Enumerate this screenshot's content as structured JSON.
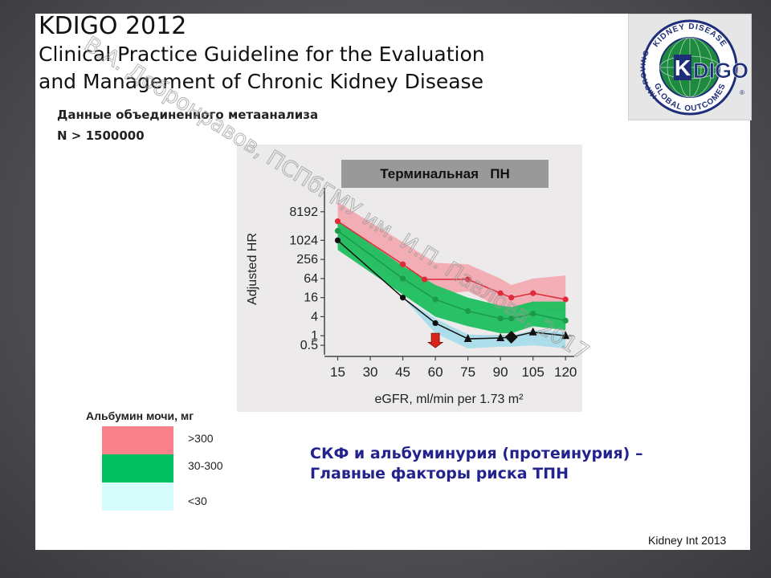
{
  "title": {
    "line1": "KDIGO 2012",
    "line2": "Clinical Practice Guideline for the Evaluation",
    "line3": "and Management of Chronic Kidney Disease"
  },
  "subtitle": {
    "line1": "Данные объединенного метаанализа",
    "line2": "N > 1500000"
  },
  "logo": {
    "top_text": "KIDNEY DISEASE",
    "left_text": "IMPROVING",
    "bottom_text": "GLOBAL OUTCOMES",
    "wordmark_k": "K",
    "wordmark_rest": "DIGO",
    "reg": "®"
  },
  "chart_data": {
    "type": "line",
    "title": "Терминальная   ПН",
    "xlabel": "eGFR, ml/min per 1.73 m²",
    "ylabel": "Adjusted HR",
    "x": [
      15,
      30,
      45,
      60,
      75,
      90,
      105,
      120
    ],
    "x_tick_labels": [
      "15",
      "30",
      "45",
      "60",
      "75",
      "90",
      "105",
      "120"
    ],
    "y_scale": "log2",
    "y_ticks": [
      0.5,
      1,
      4,
      16,
      64,
      256,
      1024,
      8192
    ],
    "y_tick_labels": [
      "0.5",
      "1",
      "4",
      "16",
      "64",
      "256",
      "1024",
      "8192"
    ],
    "y_domain": [
      0.25,
      32768
    ],
    "x_domain": [
      10,
      124
    ],
    "series": [
      {
        "name": ">300",
        "color": "#e02a3a",
        "band_color": "#f4a6ae",
        "points": [
          [
            15,
            4096
          ],
          [
            45,
            180
          ],
          [
            55,
            60
          ],
          [
            75,
            60
          ],
          [
            90,
            22
          ],
          [
            95,
            16
          ],
          [
            105,
            22
          ],
          [
            120,
            14
          ]
        ],
        "band_upper": [
          [
            15,
            16384
          ],
          [
            45,
            900
          ],
          [
            60,
            200
          ],
          [
            75,
            180
          ],
          [
            90,
            64
          ],
          [
            95,
            40
          ],
          [
            105,
            64
          ],
          [
            120,
            80
          ]
        ],
        "band_lower": [
          [
            15,
            1024
          ],
          [
            45,
            40
          ],
          [
            60,
            20
          ],
          [
            75,
            25
          ],
          [
            90,
            8
          ],
          [
            95,
            6
          ],
          [
            105,
            8
          ],
          [
            120,
            5
          ]
        ]
      },
      {
        "name": "30-300",
        "color": "#1a9a4a",
        "band_color": "#1fbf5f",
        "points": [
          [
            15,
            2048
          ],
          [
            45,
            64
          ],
          [
            60,
            14
          ],
          [
            75,
            6
          ],
          [
            90,
            3.5
          ],
          [
            95,
            3.5
          ],
          [
            105,
            5
          ],
          [
            120,
            3
          ]
        ],
        "band_upper": [
          [
            15,
            4096
          ],
          [
            45,
            160
          ],
          [
            60,
            40
          ],
          [
            75,
            16
          ],
          [
            90,
            9
          ],
          [
            95,
            8
          ],
          [
            105,
            12
          ],
          [
            120,
            12
          ]
        ],
        "band_lower": [
          [
            15,
            512
          ],
          [
            45,
            20
          ],
          [
            60,
            4
          ],
          [
            75,
            2
          ],
          [
            90,
            1.2
          ],
          [
            95,
            1.2
          ],
          [
            105,
            2
          ],
          [
            120,
            1.5
          ]
        ]
      },
      {
        "name": "<30",
        "color": "#111111",
        "band_color": "#a9dcea",
        "points": [
          [
            15,
            1024
          ],
          [
            45,
            16
          ],
          [
            60,
            2.5
          ],
          [
            75,
            0.8
          ],
          [
            90,
            0.85
          ],
          [
            95,
            0.9
          ],
          [
            105,
            1.3
          ],
          [
            120,
            1.0
          ]
        ],
        "band_upper": [
          [
            15,
            1024
          ],
          [
            45,
            16
          ],
          [
            60,
            3.5
          ],
          [
            75,
            1.1
          ],
          [
            90,
            1.0
          ],
          [
            95,
            1.0
          ],
          [
            105,
            1.5
          ],
          [
            120,
            1.3
          ]
        ],
        "band_lower": [
          [
            15,
            1024
          ],
          [
            45,
            16
          ],
          [
            60,
            1.2
          ],
          [
            75,
            0.4
          ],
          [
            90,
            0.45
          ],
          [
            95,
            0.45
          ],
          [
            105,
            0.5
          ],
          [
            120,
            0.4
          ]
        ]
      }
    ],
    "reference_x": 95,
    "highlight_x": 60,
    "highlight_color": "#d9241c"
  },
  "legend": {
    "title": "Альбумин мочи, мг",
    "items": [
      {
        "label": ">300",
        "color": "#f8818a"
      },
      {
        "label": "30-300",
        "color": "#00c060"
      },
      {
        "label": "<30",
        "color": "#d6fbfb"
      }
    ]
  },
  "conclusion": {
    "line1": "СКФ и альбуминурия (протеинурия) –",
    "line2": "Главные факторы риска ТПН"
  },
  "source": "Kidney Int 2013",
  "watermark": "В.А. Добронравов, ПСПбГМУ им. И.П. Павлова, 2017",
  "colors": {
    "background": "#4e4e52",
    "slide": "#ffffff",
    "conclusion_text": "#23238e",
    "chart_panel": "#eceaea"
  }
}
